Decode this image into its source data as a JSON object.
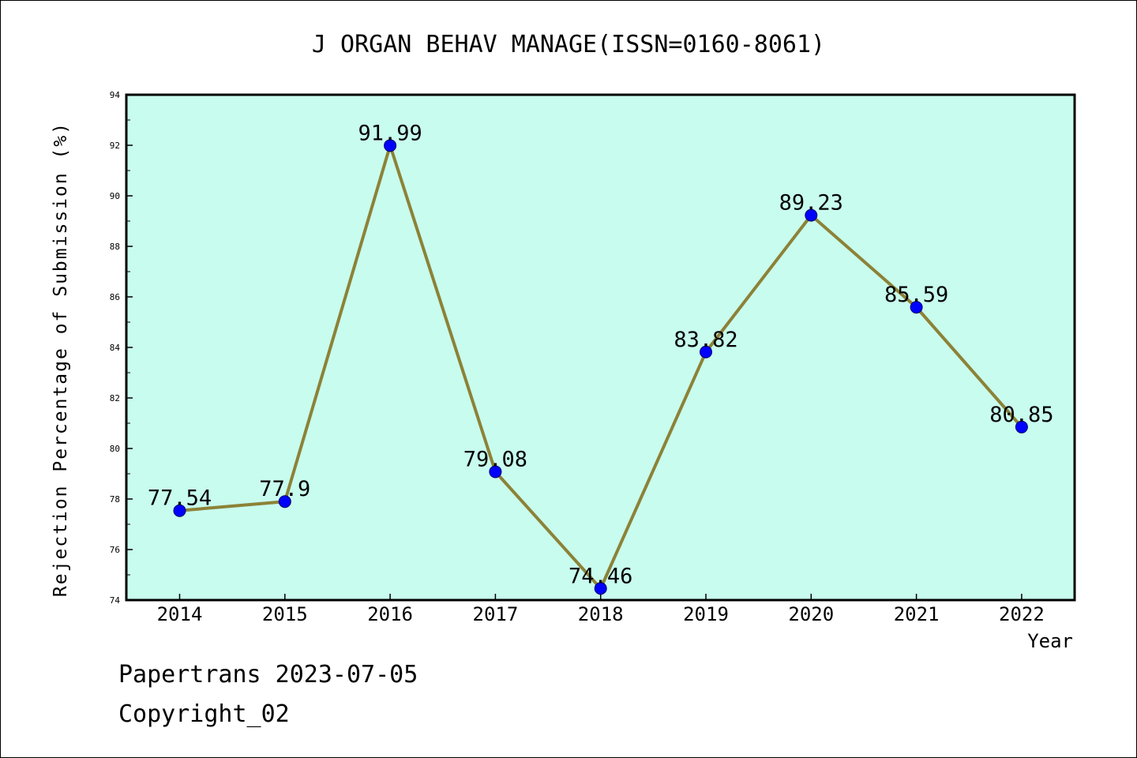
{
  "colors": {
    "plot_background": "#c8fcee",
    "line": "#8c8237",
    "marker": "#0000ff",
    "axis": "#000000"
  },
  "chart_data": {
    "type": "line",
    "title": "J ORGAN BEHAV MANAGE(ISSN=0160-8061)",
    "xlabel": "Year",
    "ylabel": "Rejection Percentage of Submission (%)",
    "categories": [
      "2014",
      "2015",
      "2016",
      "2017",
      "2018",
      "2019",
      "2020",
      "2021",
      "2022"
    ],
    "values": [
      77.54,
      77.9,
      91.99,
      79.08,
      74.46,
      83.82,
      89.23,
      85.59,
      80.85
    ],
    "data_labels": [
      "77.54",
      "77.9",
      "91.99",
      "79.08",
      "74.46",
      "83.82",
      "89.23",
      "85.59",
      "80.85"
    ],
    "ylim": [
      74,
      94
    ],
    "yticks": [
      "74",
      "76",
      "78",
      "80",
      "82",
      "84",
      "86",
      "88",
      "90",
      "92",
      "94"
    ],
    "grid": false,
    "legend": "none"
  },
  "footer": {
    "line1": "Papertrans 2023-07-05",
    "line2": "Copyright_02"
  }
}
